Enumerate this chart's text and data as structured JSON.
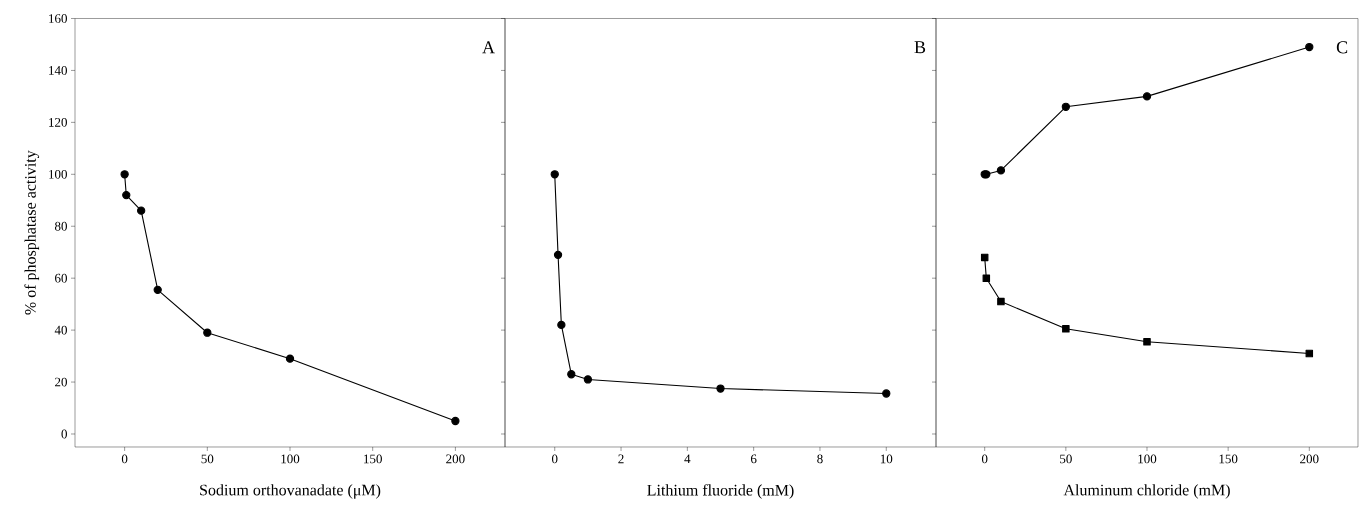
{
  "chart_data": [
    {
      "type": "line",
      "xlabel": "Sodium orthovanadate (μM)",
      "ylabel": "% of  phosphatase activity",
      "annotations": [
        "A"
      ],
      "xlim": [
        -30,
        230
      ],
      "xticks": [
        0,
        50,
        100,
        150,
        200
      ],
      "ylim": [
        -5,
        160
      ],
      "yticks": [
        0,
        20,
        40,
        60,
        80,
        100,
        120,
        140,
        160
      ],
      "marker": "circle",
      "series": [
        {
          "color": "#000000",
          "x": [
            0,
            1,
            10,
            20,
            50,
            100,
            200
          ],
          "values": [
            100,
            92,
            86,
            55.5,
            39,
            29,
            5
          ]
        }
      ]
    },
    {
      "type": "line",
      "xlabel": "Lithium fluoride (mM)",
      "annotations": [
        "B"
      ],
      "xlim": [
        -1.5,
        11.5
      ],
      "xticks": [
        0,
        2,
        4,
        6,
        8,
        10
      ],
      "ylim": [
        -5,
        160
      ],
      "yticks": [
        0,
        20,
        40,
        60,
        80,
        100,
        120,
        140,
        160
      ],
      "tick_labels": "x",
      "marker": "circle",
      "series": [
        {
          "color": "#000000",
          "x": [
            0,
            0.1,
            0.2,
            0.5,
            1,
            5,
            10
          ],
          "values": [
            100,
            69,
            42,
            23,
            21,
            17.5,
            15.6
          ]
        }
      ]
    },
    {
      "type": "line",
      "xlabel": "Aluminum chloride (mM)",
      "annotations": [
        "C"
      ],
      "xlim": [
        -30,
        230
      ],
      "xticks": [
        0,
        50,
        100,
        150,
        200
      ],
      "ylim": [
        -5,
        160
      ],
      "yticks": [
        0,
        20,
        40,
        60,
        80,
        100,
        120,
        140,
        160
      ],
      "tick_labels": "x",
      "marker": "circle",
      "series": [
        {
          "color": "#000000",
          "x": [
            0,
            1,
            10,
            50,
            100,
            200
          ],
          "values": [
            100,
            100,
            101.5,
            126,
            130,
            149
          ]
        },
        {
          "color": "#000000",
          "marker": "square",
          "x": [
            0,
            1,
            10,
            50,
            100,
            200
          ],
          "values": [
            68,
            60,
            51,
            40.5,
            35.5,
            31
          ]
        }
      ]
    }
  ]
}
